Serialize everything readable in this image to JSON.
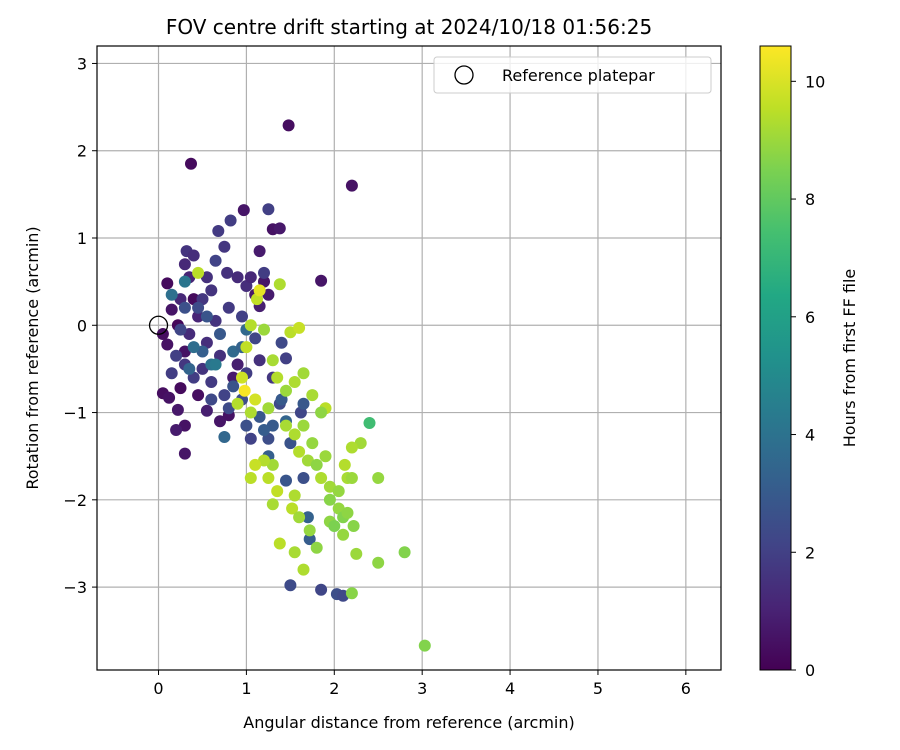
{
  "chart_data": {
    "type": "scatter",
    "title": "FOV centre drift starting at 2024/10/18 01:56:25",
    "xlabel": "Angular distance from reference (arcmin)",
    "ylabel": "Rotation from reference (arcmin)",
    "xlim": [
      -0.7,
      6.4
    ],
    "ylim": [
      -3.95,
      3.2
    ],
    "xticks": [
      0,
      1,
      2,
      3,
      4,
      5,
      6
    ],
    "yticks": [
      -3,
      -2,
      -1,
      0,
      1,
      2,
      3
    ],
    "grid": true,
    "legend": {
      "placement": "top-right",
      "entries": [
        "Reference platepar"
      ]
    },
    "reference_point": {
      "name": "Reference platepar",
      "x": 0,
      "y": 0
    },
    "colorbar": {
      "label": "Hours from first FF file",
      "colormap": "viridis",
      "range": [
        0,
        10.6
      ],
      "ticks": [
        0,
        2,
        4,
        6,
        8,
        10
      ]
    },
    "points": [
      {
        "x": 0.37,
        "y": 1.85,
        "t": 0.3
      },
      {
        "x": 1.48,
        "y": 2.29,
        "t": 0.4
      },
      {
        "x": 2.2,
        "y": 1.6,
        "t": 0.5
      },
      {
        "x": 1.85,
        "y": 0.51,
        "t": 0.6
      },
      {
        "x": 0.97,
        "y": 1.32,
        "t": 0.6
      },
      {
        "x": 1.3,
        "y": 1.1,
        "t": 0.5
      },
      {
        "x": 1.38,
        "y": 1.11,
        "t": 0.7
      },
      {
        "x": 1.15,
        "y": 0.85,
        "t": 0.8
      },
      {
        "x": 0.1,
        "y": 0.48,
        "t": 0.3
      },
      {
        "x": 0.05,
        "y": -0.1,
        "t": 0.4
      },
      {
        "x": 0.1,
        "y": -0.22,
        "t": 0.5
      },
      {
        "x": 0.05,
        "y": -0.78,
        "t": 0.4
      },
      {
        "x": 0.12,
        "y": -0.83,
        "t": 0.5
      },
      {
        "x": 0.3,
        "y": -1.47,
        "t": 0.6
      },
      {
        "x": 0.3,
        "y": -1.15,
        "t": 0.5
      },
      {
        "x": 0.22,
        "y": -0.97,
        "t": 0.7
      },
      {
        "x": 0.2,
        "y": -1.2,
        "t": 0.8
      },
      {
        "x": 0.25,
        "y": -0.72,
        "t": 0.3
      },
      {
        "x": 0.15,
        "y": 0.18,
        "t": 0.6
      },
      {
        "x": 0.22,
        "y": 0.0,
        "t": 0.2
      },
      {
        "x": 0.3,
        "y": -0.3,
        "t": 0.5
      },
      {
        "x": 0.45,
        "y": -0.8,
        "t": 0.4
      },
      {
        "x": 0.55,
        "y": -0.98,
        "t": 0.9
      },
      {
        "x": 0.7,
        "y": -1.1,
        "t": 0.6
      },
      {
        "x": 0.8,
        "y": -1.03,
        "t": 0.5
      },
      {
        "x": 0.85,
        "y": -0.6,
        "t": 0.8
      },
      {
        "x": 0.9,
        "y": -0.45,
        "t": 0.9
      },
      {
        "x": 1.1,
        "y": 0.35,
        "t": 0.7
      },
      {
        "x": 1.2,
        "y": 0.5,
        "t": 0.6
      },
      {
        "x": 1.25,
        "y": 0.35,
        "t": 0.8
      },
      {
        "x": 1.15,
        "y": 0.22,
        "t": 0.9
      },
      {
        "x": 0.4,
        "y": 0.3,
        "t": 0.3
      },
      {
        "x": 0.35,
        "y": 0.55,
        "t": 1.1
      },
      {
        "x": 0.3,
        "y": 0.7,
        "t": 1.2
      },
      {
        "x": 0.32,
        "y": 0.85,
        "t": 1.6
      },
      {
        "x": 0.4,
        "y": 0.8,
        "t": 1.4
      },
      {
        "x": 0.55,
        "y": 0.55,
        "t": 1.5
      },
      {
        "x": 0.68,
        "y": 1.08,
        "t": 1.8
      },
      {
        "x": 0.75,
        "y": 0.9,
        "t": 1.7
      },
      {
        "x": 0.82,
        "y": 1.2,
        "t": 1.9
      },
      {
        "x": 0.78,
        "y": 0.6,
        "t": 1.5
      },
      {
        "x": 0.9,
        "y": 0.55,
        "t": 1.3
      },
      {
        "x": 1.0,
        "y": 0.45,
        "t": 1.4
      },
      {
        "x": 1.05,
        "y": 0.55,
        "t": 1.2
      },
      {
        "x": 1.2,
        "y": 0.6,
        "t": 1.9
      },
      {
        "x": 1.25,
        "y": 1.33,
        "t": 2.0
      },
      {
        "x": 0.65,
        "y": 0.74,
        "t": 2.1
      },
      {
        "x": 0.6,
        "y": 0.4,
        "t": 1.6
      },
      {
        "x": 0.5,
        "y": 0.3,
        "t": 1.7
      },
      {
        "x": 0.45,
        "y": 0.1,
        "t": 1.1
      },
      {
        "x": 0.25,
        "y": 0.3,
        "t": 1.2
      },
      {
        "x": 0.35,
        "y": -0.1,
        "t": 1.3
      },
      {
        "x": 0.55,
        "y": -0.2,
        "t": 1.4
      },
      {
        "x": 0.65,
        "y": 0.05,
        "t": 1.6
      },
      {
        "x": 0.8,
        "y": 0.2,
        "t": 1.8
      },
      {
        "x": 0.95,
        "y": 0.1,
        "t": 2.0
      },
      {
        "x": 0.7,
        "y": -0.35,
        "t": 1.5
      },
      {
        "x": 0.5,
        "y": -0.5,
        "t": 1.6
      },
      {
        "x": 0.4,
        "y": -0.6,
        "t": 1.9
      },
      {
        "x": 0.3,
        "y": -0.45,
        "t": 1.7
      },
      {
        "x": 0.6,
        "y": -0.65,
        "t": 1.8
      },
      {
        "x": 0.75,
        "y": -0.8,
        "t": 2.1
      },
      {
        "x": 1.0,
        "y": -0.55,
        "t": 1.9
      },
      {
        "x": 1.1,
        "y": -0.15,
        "t": 2.2
      },
      {
        "x": 1.15,
        "y": -0.4,
        "t": 1.5
      },
      {
        "x": 1.3,
        "y": -0.6,
        "t": 1.7
      },
      {
        "x": 1.4,
        "y": -0.2,
        "t": 2.3
      },
      {
        "x": 1.45,
        "y": -0.38,
        "t": 2.0
      },
      {
        "x": 1.38,
        "y": -0.9,
        "t": 2.4
      },
      {
        "x": 1.62,
        "y": -1.0,
        "t": 2.2
      },
      {
        "x": 1.25,
        "y": -1.3,
        "t": 2.5
      },
      {
        "x": 1.05,
        "y": -1.3,
        "t": 2.1
      },
      {
        "x": 1.0,
        "y": -1.15,
        "t": 2.6
      },
      {
        "x": 1.15,
        "y": -1.05,
        "t": 2.9
      },
      {
        "x": 1.3,
        "y": -1.15,
        "t": 3.0
      },
      {
        "x": 0.8,
        "y": -0.95,
        "t": 2.4
      },
      {
        "x": 0.6,
        "y": -0.85,
        "t": 2.3
      },
      {
        "x": 0.85,
        "y": -0.7,
        "t": 2.7
      },
      {
        "x": 0.95,
        "y": -0.85,
        "t": 2.5
      },
      {
        "x": 0.2,
        "y": -0.35,
        "t": 2.0
      },
      {
        "x": 0.15,
        "y": -0.55,
        "t": 1.9
      },
      {
        "x": 0.25,
        "y": -0.05,
        "t": 2.2
      },
      {
        "x": 0.3,
        "y": 0.2,
        "t": 2.6
      },
      {
        "x": 0.45,
        "y": 0.2,
        "t": 2.4
      },
      {
        "x": 0.55,
        "y": 0.1,
        "t": 2.8
      },
      {
        "x": 0.7,
        "y": -0.1,
        "t": 2.9
      },
      {
        "x": 0.5,
        "y": -0.3,
        "t": 3.2
      },
      {
        "x": 0.35,
        "y": -0.5,
        "t": 3.4
      },
      {
        "x": 0.6,
        "y": -0.45,
        "t": 4.0
      },
      {
        "x": 0.4,
        "y": -0.25,
        "t": 3.8
      },
      {
        "x": 0.85,
        "y": -0.3,
        "t": 3.6
      },
      {
        "x": 0.75,
        "y": -1.28,
        "t": 3.5
      },
      {
        "x": 1.25,
        "y": -1.5,
        "t": 3.2
      },
      {
        "x": 1.45,
        "y": -1.78,
        "t": 2.8
      },
      {
        "x": 1.65,
        "y": -1.75,
        "t": 2.6
      },
      {
        "x": 1.7,
        "y": -2.2,
        "t": 3.3
      },
      {
        "x": 1.72,
        "y": -2.45,
        "t": 3.1
      },
      {
        "x": 1.5,
        "y": -2.98,
        "t": 2.4
      },
      {
        "x": 1.85,
        "y": -3.03,
        "t": 2.2
      },
      {
        "x": 2.03,
        "y": -3.08,
        "t": 2.5
      },
      {
        "x": 2.1,
        "y": -3.1,
        "t": 2.3
      },
      {
        "x": 1.5,
        "y": -1.35,
        "t": 2.7
      },
      {
        "x": 1.2,
        "y": -1.2,
        "t": 3.1
      },
      {
        "x": 1.45,
        "y": -1.1,
        "t": 3.4
      },
      {
        "x": 1.4,
        "y": -0.85,
        "t": 3.0
      },
      {
        "x": 1.65,
        "y": -0.9,
        "t": 2.9
      },
      {
        "x": 0.95,
        "y": -0.25,
        "t": 3.3
      },
      {
        "x": 1.0,
        "y": -0.05,
        "t": 3.6
      },
      {
        "x": 0.65,
        "y": -0.45,
        "t": 4.3
      },
      {
        "x": 0.3,
        "y": 0.5,
        "t": 4.1
      },
      {
        "x": 0.15,
        "y": 0.35,
        "t": 3.9
      },
      {
        "x": 0.45,
        "y": 0.6,
        "t": 9.5
      },
      {
        "x": 1.12,
        "y": 0.3,
        "t": 9.6
      },
      {
        "x": 1.05,
        "y": 0.0,
        "t": 9.4
      },
      {
        "x": 1.15,
        "y": 0.4,
        "t": 10.2
      },
      {
        "x": 1.38,
        "y": 0.47,
        "t": 9.3
      },
      {
        "x": 1.2,
        "y": -0.05,
        "t": 9.0
      },
      {
        "x": 1.5,
        "y": -0.08,
        "t": 9.5
      },
      {
        "x": 1.6,
        "y": -0.03,
        "t": 9.7
      },
      {
        "x": 1.3,
        "y": -0.4,
        "t": 9.2
      },
      {
        "x": 1.35,
        "y": -0.6,
        "t": 9.4
      },
      {
        "x": 1.45,
        "y": -0.75,
        "t": 9.0
      },
      {
        "x": 1.55,
        "y": -0.65,
        "t": 9.3
      },
      {
        "x": 1.65,
        "y": -0.55,
        "t": 9.1
      },
      {
        "x": 1.75,
        "y": -0.8,
        "t": 9.2
      },
      {
        "x": 1.9,
        "y": -0.95,
        "t": 9.5
      },
      {
        "x": 1.85,
        "y": -1.0,
        "t": 8.8
      },
      {
        "x": 1.0,
        "y": -0.25,
        "t": 9.6
      },
      {
        "x": 0.95,
        "y": -0.6,
        "t": 9.8
      },
      {
        "x": 0.9,
        "y": -0.9,
        "t": 9.4
      },
      {
        "x": 0.98,
        "y": -0.75,
        "t": 10.5
      },
      {
        "x": 1.1,
        "y": -0.85,
        "t": 9.9
      },
      {
        "x": 1.05,
        "y": -1.0,
        "t": 9.3
      },
      {
        "x": 1.25,
        "y": -0.95,
        "t": 9.1
      },
      {
        "x": 1.45,
        "y": -1.15,
        "t": 9.2
      },
      {
        "x": 1.55,
        "y": -1.25,
        "t": 9.3
      },
      {
        "x": 1.65,
        "y": -1.15,
        "t": 9.0
      },
      {
        "x": 1.75,
        "y": -1.35,
        "t": 8.9
      },
      {
        "x": 1.6,
        "y": -1.45,
        "t": 9.4
      },
      {
        "x": 1.7,
        "y": -1.55,
        "t": 9.1
      },
      {
        "x": 1.8,
        "y": -1.6,
        "t": 8.8
      },
      {
        "x": 1.9,
        "y": -1.5,
        "t": 9.0
      },
      {
        "x": 1.85,
        "y": -1.75,
        "t": 9.3
      },
      {
        "x": 1.3,
        "y": -1.6,
        "t": 9.1
      },
      {
        "x": 1.2,
        "y": -1.55,
        "t": 9.4
      },
      {
        "x": 1.1,
        "y": -1.6,
        "t": 9.7
      },
      {
        "x": 1.25,
        "y": -1.75,
        "t": 9.5
      },
      {
        "x": 1.35,
        "y": -1.9,
        "t": 9.6
      },
      {
        "x": 1.05,
        "y": -1.75,
        "t": 9.5
      },
      {
        "x": 1.3,
        "y": -2.05,
        "t": 9.2
      },
      {
        "x": 1.55,
        "y": -1.95,
        "t": 9.3
      },
      {
        "x": 1.52,
        "y": -2.1,
        "t": 9.5
      },
      {
        "x": 1.6,
        "y": -2.2,
        "t": 9.1
      },
      {
        "x": 1.72,
        "y": -2.35,
        "t": 8.9
      },
      {
        "x": 1.95,
        "y": -2.0,
        "t": 8.7
      },
      {
        "x": 2.05,
        "y": -2.1,
        "t": 8.9
      },
      {
        "x": 2.1,
        "y": -2.2,
        "t": 8.6
      },
      {
        "x": 2.15,
        "y": -2.15,
        "t": 8.8
      },
      {
        "x": 1.95,
        "y": -2.25,
        "t": 8.8
      },
      {
        "x": 2.22,
        "y": -2.3,
        "t": 8.7
      },
      {
        "x": 2.25,
        "y": -2.62,
        "t": 9.0
      },
      {
        "x": 2.1,
        "y": -2.4,
        "t": 8.9
      },
      {
        "x": 2.15,
        "y": -1.75,
        "t": 9.2
      },
      {
        "x": 2.2,
        "y": -1.75,
        "t": 9.0
      },
      {
        "x": 2.3,
        "y": -1.35,
        "t": 9.1
      },
      {
        "x": 2.2,
        "y": -1.4,
        "t": 9.3
      },
      {
        "x": 2.12,
        "y": -1.6,
        "t": 9.4
      },
      {
        "x": 2.4,
        "y": -1.12,
        "t": 7.3
      },
      {
        "x": 2.5,
        "y": -1.75,
        "t": 8.9
      },
      {
        "x": 2.5,
        "y": -2.72,
        "t": 8.8
      },
      {
        "x": 2.8,
        "y": -2.6,
        "t": 8.6
      },
      {
        "x": 2.2,
        "y": -3.07,
        "t": 8.7
      },
      {
        "x": 1.55,
        "y": -2.6,
        "t": 9.2
      },
      {
        "x": 1.38,
        "y": -2.5,
        "t": 9.5
      },
      {
        "x": 1.65,
        "y": -2.8,
        "t": 9.3
      },
      {
        "x": 3.03,
        "y": -3.67,
        "t": 8.6
      },
      {
        "x": 1.8,
        "y": -2.55,
        "t": 8.8
      },
      {
        "x": 2.0,
        "y": -2.3,
        "t": 8.5
      },
      {
        "x": 1.95,
        "y": -1.85,
        "t": 9.1
      },
      {
        "x": 2.05,
        "y": -1.9,
        "t": 8.9
      }
    ]
  }
}
